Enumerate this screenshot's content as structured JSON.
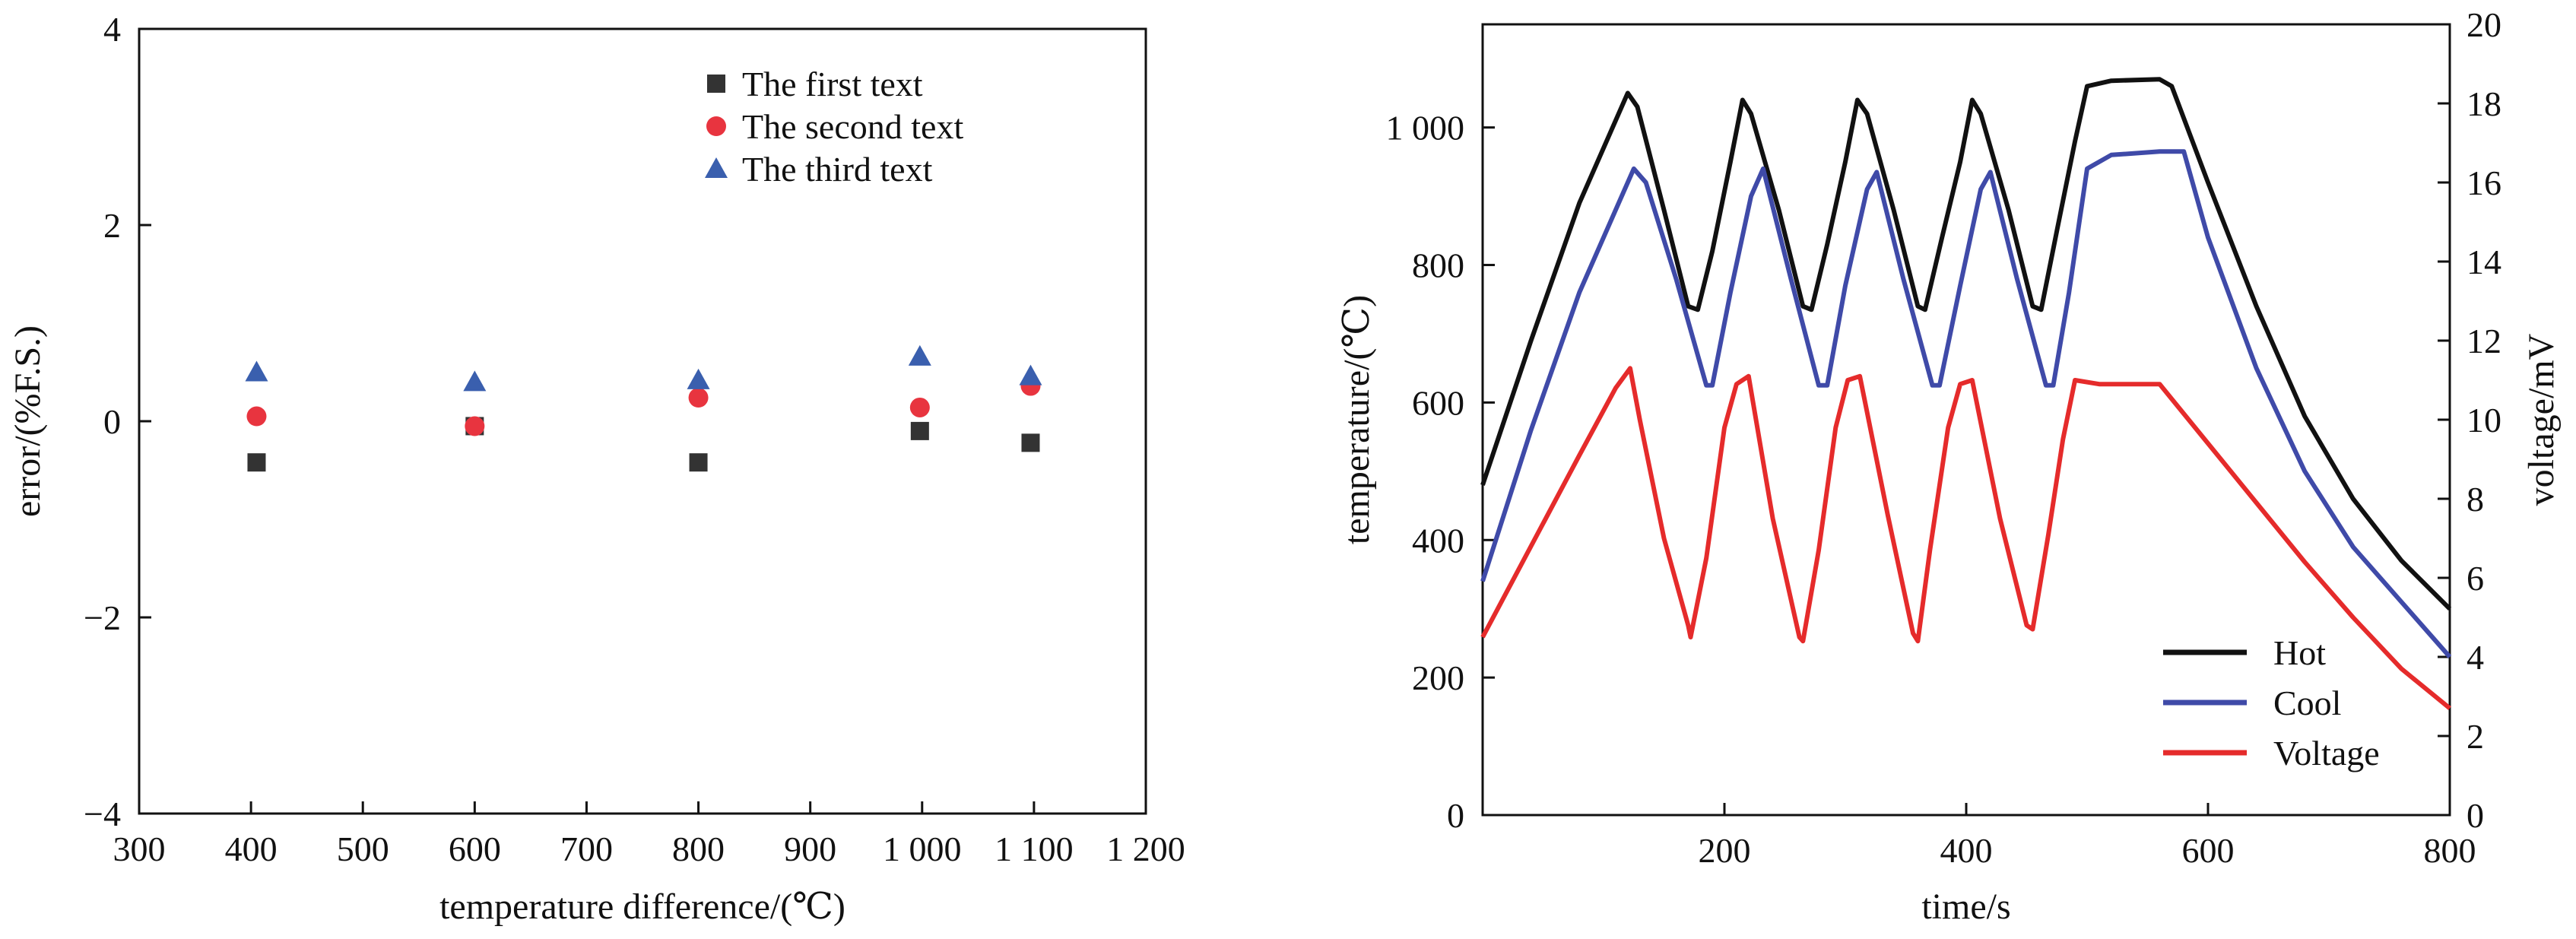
{
  "chart_data": [
    {
      "type": "scatter",
      "xlabel": "temperature difference/(℃)",
      "ylabel": "error/(%F.S.)",
      "xlim": [
        300,
        1200
      ],
      "ylim": [
        -4,
        4
      ],
      "x_ticks": [
        {
          "value": 300,
          "label": "300"
        },
        {
          "value": 400,
          "label": "400"
        },
        {
          "value": 500,
          "label": "500"
        },
        {
          "value": 600,
          "label": "600"
        },
        {
          "value": 700,
          "label": "700"
        },
        {
          "value": 800,
          "label": "800"
        },
        {
          "value": 900,
          "label": "900"
        },
        {
          "value": 1000,
          "label": "1 000"
        },
        {
          "value": 1100,
          "label": "1 100"
        },
        {
          "value": 1200,
          "label": "1 200"
        }
      ],
      "y_ticks": [
        {
          "value": -4,
          "label": "−4"
        },
        {
          "value": -2,
          "label": "−2"
        },
        {
          "value": 0,
          "label": "0"
        },
        {
          "value": 2,
          "label": "2"
        },
        {
          "value": 4,
          "label": "4"
        }
      ],
      "legend_position": "top-right",
      "series": [
        {
          "name": "The first text",
          "marker": "square",
          "color": "#333333",
          "x": [
            405,
            600,
            800,
            998,
            1097
          ],
          "y": [
            -0.42,
            -0.05,
            -0.42,
            -0.1,
            -0.22
          ]
        },
        {
          "name": "The second text",
          "marker": "circle",
          "color": "#e8343f",
          "x": [
            405,
            600,
            800,
            998,
            1097
          ],
          "y": [
            0.05,
            -0.05,
            0.24,
            0.14,
            0.36
          ]
        },
        {
          "name": "The third text",
          "marker": "triangle",
          "color": "#3a5fae",
          "x": [
            405,
            600,
            800,
            998,
            1097
          ],
          "y": [
            0.5,
            0.4,
            0.42,
            0.66,
            0.46
          ]
        }
      ]
    },
    {
      "type": "line",
      "xlabel": "time/s",
      "ylabel": "temperature/(℃)",
      "ylabel_right": "voltage/mV",
      "xlim": [
        0,
        800
      ],
      "ylim": [
        0,
        1150
      ],
      "ylim_right": [
        0,
        20
      ],
      "x_ticks": [
        {
          "value": 200,
          "label": "200"
        },
        {
          "value": 400,
          "label": "400"
        },
        {
          "value": 600,
          "label": "600"
        },
        {
          "value": 800,
          "label": "800"
        }
      ],
      "y_ticks": [
        {
          "value": 0,
          "label": "0"
        },
        {
          "value": 200,
          "label": "200"
        },
        {
          "value": 400,
          "label": "400"
        },
        {
          "value": 600,
          "label": "600"
        },
        {
          "value": 800,
          "label": "800"
        },
        {
          "value": 1000,
          "label": "1 000"
        }
      ],
      "y_ticks_right": [
        {
          "value": 0,
          "label": "0"
        },
        {
          "value": 2,
          "label": "2"
        },
        {
          "value": 4,
          "label": "4"
        },
        {
          "value": 6,
          "label": "6"
        },
        {
          "value": 8,
          "label": "8"
        },
        {
          "value": 10,
          "label": "10"
        },
        {
          "value": 12,
          "label": "12"
        },
        {
          "value": 14,
          "label": "14"
        },
        {
          "value": 16,
          "label": "16"
        },
        {
          "value": 18,
          "label": "18"
        },
        {
          "value": 20,
          "label": "20"
        }
      ],
      "legend_position": "bottom-right",
      "series": [
        {
          "name": "Hot",
          "color": "#111111",
          "axis": "left",
          "x": [
            0,
            40,
            80,
            110,
            120,
            128,
            150,
            170,
            178,
            190,
            205,
            215,
            222,
            245,
            265,
            272,
            285,
            300,
            310,
            318,
            340,
            360,
            366,
            380,
            395,
            405,
            412,
            435,
            455,
            462,
            475,
            490,
            500,
            520,
            560,
            570,
            600,
            640,
            680,
            720,
            760,
            800
          ],
          "y": [
            480,
            690,
            890,
            1010,
            1050,
            1030,
            880,
            740,
            735,
            820,
            950,
            1040,
            1020,
            880,
            740,
            735,
            830,
            950,
            1040,
            1020,
            880,
            740,
            735,
            840,
            950,
            1040,
            1020,
            880,
            740,
            735,
            850,
            980,
            1060,
            1068,
            1070,
            1060,
            920,
            740,
            580,
            460,
            370,
            300
          ]
        },
        {
          "name": "Cool",
          "color": "#3f4aa8",
          "axis": "left",
          "x": [
            0,
            40,
            80,
            110,
            125,
            135,
            160,
            185,
            190,
            205,
            222,
            232,
            255,
            278,
            285,
            300,
            318,
            326,
            348,
            372,
            378,
            395,
            412,
            420,
            442,
            466,
            472,
            485,
            500,
            520,
            560,
            580,
            600,
            640,
            680,
            720,
            760,
            800
          ],
          "y": [
            340,
            560,
            760,
            880,
            940,
            920,
            780,
            625,
            625,
            760,
            900,
            940,
            780,
            625,
            625,
            770,
            910,
            935,
            780,
            625,
            625,
            770,
            910,
            935,
            780,
            625,
            625,
            760,
            940,
            960,
            965,
            965,
            840,
            650,
            500,
            390,
            310,
            230
          ]
        },
        {
          "name": "Voltage",
          "color": "#e52b2b",
          "axis": "right",
          "x": [
            0,
            40,
            80,
            110,
            122,
            130,
            150,
            170,
            172,
            185,
            200,
            210,
            220,
            240,
            262,
            265,
            278,
            292,
            302,
            312,
            335,
            356,
            360,
            370,
            385,
            395,
            405,
            428,
            450,
            455,
            468,
            480,
            490,
            510,
            560,
            600,
            640,
            680,
            720,
            760,
            800
          ],
          "y": [
            4.5,
            6.8,
            9.1,
            10.8,
            11.3,
            10.0,
            7.0,
            4.8,
            4.5,
            6.5,
            9.8,
            10.9,
            11.1,
            7.5,
            4.5,
            4.4,
            6.7,
            9.8,
            11.0,
            11.1,
            7.6,
            4.6,
            4.4,
            6.7,
            9.8,
            10.9,
            11.0,
            7.5,
            4.8,
            4.7,
            7.1,
            9.5,
            11.0,
            10.9,
            10.9,
            9.4,
            7.9,
            6.4,
            5.0,
            3.7,
            2.7
          ]
        }
      ]
    }
  ]
}
